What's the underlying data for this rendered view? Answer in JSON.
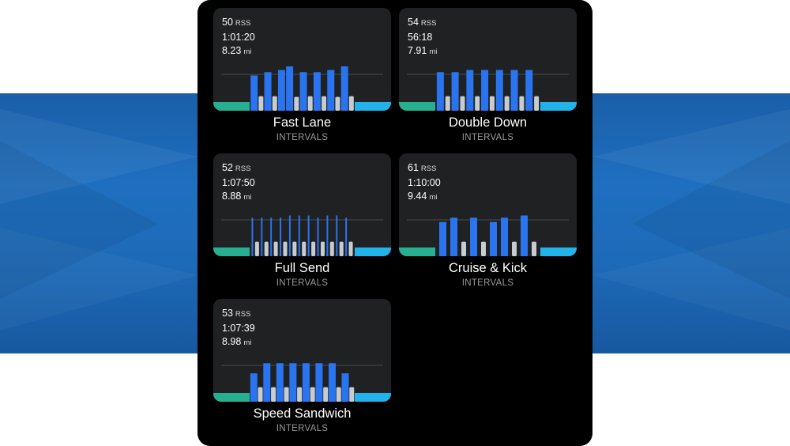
{
  "colors": {
    "warmup": "#27b08f",
    "interval": "#2a74f0",
    "recovery": "#c7ccd1",
    "cooldown": "#22b3ea",
    "card_bg": "#1f2123",
    "guide_line": "#4a4d50"
  },
  "workouts": [
    {
      "rss": "50",
      "rss_unit": "RSS",
      "duration": "1:01:20",
      "distance": "8.23",
      "distance_unit": "mi",
      "name": "Fast Lane",
      "category": "INTERVALS",
      "segments": [
        {
          "type": "warmup",
          "level": 0.24
        },
        {
          "type": "interval",
          "level": 0.97
        },
        {
          "type": "recovery",
          "level": 0.4
        },
        {
          "type": "interval",
          "level": 1.06
        },
        {
          "type": "recovery",
          "level": 0.4
        },
        {
          "type": "interval",
          "level": 1.12
        },
        {
          "type": "interval",
          "level": 1.22
        },
        {
          "type": "recovery",
          "level": 0.38
        },
        {
          "type": "interval",
          "level": 1.06
        },
        {
          "type": "recovery",
          "level": 0.4
        },
        {
          "type": "interval",
          "level": 1.06
        },
        {
          "type": "recovery",
          "level": 0.4
        },
        {
          "type": "interval",
          "level": 1.12
        },
        {
          "type": "recovery",
          "level": 0.38
        },
        {
          "type": "interval",
          "level": 1.22
        },
        {
          "type": "recovery",
          "level": 0.4
        },
        {
          "type": "cooldown",
          "level": 0.24
        }
      ]
    },
    {
      "rss": "54",
      "rss_unit": "RSS",
      "duration": "56:18",
      "distance": "7.91",
      "distance_unit": "mi",
      "name": "Double Down",
      "category": "INTERVALS",
      "segments": [
        {
          "type": "warmup",
          "level": 0.24
        },
        {
          "type": "interval",
          "level": 1.06
        },
        {
          "type": "recovery",
          "level": 0.4
        },
        {
          "type": "interval",
          "level": 1.06
        },
        {
          "type": "recovery",
          "level": 0.4
        },
        {
          "type": "interval",
          "level": 1.12
        },
        {
          "type": "recovery",
          "level": 0.4
        },
        {
          "type": "interval",
          "level": 1.12
        },
        {
          "type": "recovery",
          "level": 0.4
        },
        {
          "type": "interval",
          "level": 1.12
        },
        {
          "type": "recovery",
          "level": 0.4
        },
        {
          "type": "interval",
          "level": 1.12
        },
        {
          "type": "recovery",
          "level": 0.4
        },
        {
          "type": "interval",
          "level": 1.12
        },
        {
          "type": "recovery",
          "level": 0.4
        },
        {
          "type": "cooldown",
          "level": 0.24
        }
      ]
    },
    {
      "rss": "52",
      "rss_unit": "RSS",
      "duration": "1:07:50",
      "distance": "8.88",
      "distance_unit": "mi",
      "name": "Full Send",
      "category": "INTERVALS",
      "segments": [
        {
          "type": "warmup",
          "level": 0.24
        },
        {
          "type": "interval",
          "level": 1.06
        },
        {
          "type": "recovery",
          "level": 0.4
        },
        {
          "type": "interval",
          "level": 1.06
        },
        {
          "type": "recovery",
          "level": 0.4
        },
        {
          "type": "interval",
          "level": 1.06
        },
        {
          "type": "recovery",
          "level": 0.4
        },
        {
          "type": "interval",
          "level": 1.06
        },
        {
          "type": "recovery",
          "level": 0.4
        },
        {
          "type": "interval",
          "level": 1.12
        },
        {
          "type": "recovery",
          "level": 0.4
        },
        {
          "type": "interval",
          "level": 1.12
        },
        {
          "type": "recovery",
          "level": 0.4
        },
        {
          "type": "interval",
          "level": 1.12
        },
        {
          "type": "recovery",
          "level": 0.4
        },
        {
          "type": "interval",
          "level": 1.06
        },
        {
          "type": "recovery",
          "level": 0.4
        },
        {
          "type": "interval",
          "level": 1.12
        },
        {
          "type": "recovery",
          "level": 0.4
        },
        {
          "type": "interval",
          "level": 1.12
        },
        {
          "type": "recovery",
          "level": 0.4
        },
        {
          "type": "interval",
          "level": 1.06
        },
        {
          "type": "recovery",
          "level": 0.4
        },
        {
          "type": "cooldown",
          "level": 0.24
        }
      ]
    },
    {
      "rss": "61",
      "rss_unit": "RSS",
      "duration": "1:10:00",
      "distance": "9.44",
      "distance_unit": "mi",
      "name": "Cruise & Kick",
      "category": "INTERVALS",
      "segments": [
        {
          "type": "warmup",
          "level": 0.24
        },
        {
          "type": "interval",
          "level": 0.94
        },
        {
          "type": "interval",
          "level": 1.06
        },
        {
          "type": "recovery",
          "level": 0.4
        },
        {
          "type": "interval",
          "level": 1.06
        },
        {
          "type": "recovery",
          "level": 0.4
        },
        {
          "type": "interval",
          "level": 0.94
        },
        {
          "type": "interval",
          "level": 1.06
        },
        {
          "type": "recovery",
          "level": 0.4
        },
        {
          "type": "interval",
          "level": 1.12
        },
        {
          "type": "recovery",
          "level": 0.4
        },
        {
          "type": "cooldown",
          "level": 0.24
        }
      ]
    },
    {
      "rss": "53",
      "rss_unit": "RSS",
      "duration": "1:07:39",
      "distance": "8.98",
      "distance_unit": "mi",
      "name": "Speed Sandwich",
      "category": "INTERVALS",
      "segments": [
        {
          "type": "warmup",
          "level": 0.24
        },
        {
          "type": "interval",
          "level": 0.78
        },
        {
          "type": "recovery",
          "level": 0.4
        },
        {
          "type": "interval",
          "level": 1.06
        },
        {
          "type": "recovery",
          "level": 0.4
        },
        {
          "type": "interval",
          "level": 1.06
        },
        {
          "type": "recovery",
          "level": 0.4
        },
        {
          "type": "interval",
          "level": 1.06
        },
        {
          "type": "recovery",
          "level": 0.4
        },
        {
          "type": "interval",
          "level": 1.06
        },
        {
          "type": "recovery",
          "level": 0.4
        },
        {
          "type": "interval",
          "level": 1.06
        },
        {
          "type": "recovery",
          "level": 0.4
        },
        {
          "type": "interval",
          "level": 1.06
        },
        {
          "type": "recovery",
          "level": 0.4
        },
        {
          "type": "interval",
          "level": 0.78
        },
        {
          "type": "recovery",
          "level": 0.4
        },
        {
          "type": "cooldown",
          "level": 0.24
        }
      ]
    }
  ]
}
